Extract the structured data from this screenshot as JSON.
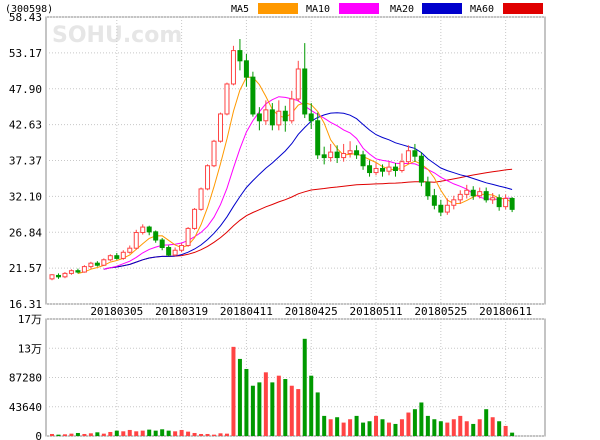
{
  "header": {
    "code": "(300598)",
    "watermark": "SOHU.com"
  },
  "legend": [
    {
      "name": "MA5",
      "color": "#ff9900"
    },
    {
      "name": "MA10",
      "color": "#ff00ff"
    },
    {
      "name": "MA20",
      "color": "#0000cc"
    },
    {
      "name": "MA60",
      "color": "#e00000"
    }
  ],
  "colors": {
    "up": "#ff4444",
    "down": "#009900",
    "grid": "#c8c8c8"
  },
  "chart_data": [
    {
      "type": "candlestick",
      "title": "",
      "y_ticks": [
        "58.43",
        "53.17",
        "47.90",
        "42.63",
        "37.37",
        "32.10",
        "26.84",
        "21.57",
        "16.31"
      ],
      "ylim": [
        16.31,
        58.43
      ],
      "x_ticks": [
        {
          "label": "20180305",
          "index": 10
        },
        {
          "label": "20180319",
          "index": 20
        },
        {
          "label": "20180411",
          "index": 30
        },
        {
          "label": "20180425",
          "index": 40
        },
        {
          "label": "20180511",
          "index": 50
        },
        {
          "label": "20180525",
          "index": 60
        },
        {
          "label": "20180611",
          "index": 70
        }
      ],
      "candles": [
        [
          20.0,
          20.6,
          19.8,
          20.7
        ],
        [
          20.5,
          20.3,
          20.0,
          20.8
        ],
        [
          20.3,
          20.8,
          20.1,
          21.0
        ],
        [
          20.8,
          21.2,
          20.6,
          21.4
        ],
        [
          21.2,
          21.0,
          20.8,
          21.5
        ],
        [
          21.0,
          21.8,
          20.9,
          22.0
        ],
        [
          21.8,
          22.3,
          21.5,
          22.5
        ],
        [
          22.3,
          22.0,
          21.8,
          22.6
        ],
        [
          22.0,
          22.8,
          21.9,
          23.0
        ],
        [
          22.8,
          23.4,
          22.6,
          23.6
        ],
        [
          23.4,
          23.0,
          22.8,
          23.8
        ],
        [
          23.0,
          23.9,
          22.8,
          24.2
        ],
        [
          23.9,
          24.5,
          23.7,
          24.9
        ],
        [
          24.5,
          26.8,
          24.3,
          27.2
        ],
        [
          26.8,
          27.6,
          26.5,
          28.0
        ],
        [
          27.6,
          26.9,
          26.4,
          27.8
        ],
        [
          26.9,
          25.7,
          25.3,
          27.1
        ],
        [
          25.7,
          24.6,
          24.2,
          26.0
        ],
        [
          24.6,
          23.5,
          23.3,
          24.9
        ],
        [
          23.5,
          24.2,
          23.3,
          24.6
        ],
        [
          24.2,
          24.9,
          23.9,
          25.2
        ],
        [
          24.9,
          27.4,
          24.7,
          27.6
        ],
        [
          27.4,
          30.2,
          27.2,
          30.4
        ],
        [
          30.2,
          33.2,
          30.0,
          33.4
        ],
        [
          33.2,
          36.6,
          33.0,
          36.8
        ],
        [
          36.6,
          40.2,
          36.4,
          40.4
        ],
        [
          40.2,
          44.2,
          40.0,
          44.4
        ],
        [
          44.2,
          48.6,
          44.0,
          48.8
        ],
        [
          48.6,
          53.5,
          48.4,
          54.2
        ],
        [
          53.5,
          52.0,
          50.6,
          55.2
        ],
        [
          52.0,
          49.6,
          48.2,
          53.0
        ],
        [
          49.6,
          44.2,
          43.8,
          50.4
        ],
        [
          44.2,
          43.2,
          41.8,
          45.2
        ],
        [
          43.2,
          44.8,
          42.6,
          46.2
        ],
        [
          44.8,
          42.6,
          41.8,
          45.8
        ],
        [
          42.6,
          44.6,
          41.8,
          46.2
        ],
        [
          44.6,
          43.2,
          41.6,
          45.4
        ],
        [
          43.2,
          46.4,
          42.8,
          47.6
        ],
        [
          46.4,
          50.8,
          46.0,
          52.0
        ],
        [
          50.8,
          44.2,
          43.6,
          54.6
        ],
        [
          44.2,
          43.2,
          42.0,
          45.8
        ],
        [
          43.2,
          38.2,
          37.6,
          44.4
        ],
        [
          38.2,
          37.8,
          36.8,
          39.4
        ],
        [
          37.8,
          38.6,
          37.2,
          39.8
        ],
        [
          38.6,
          37.8,
          37.0,
          39.6
        ],
        [
          37.8,
          38.4,
          37.2,
          39.8
        ],
        [
          38.4,
          38.8,
          37.8,
          40.2
        ],
        [
          38.8,
          38.2,
          37.6,
          39.6
        ],
        [
          38.2,
          36.6,
          36.0,
          38.8
        ],
        [
          36.6,
          35.6,
          35.0,
          37.4
        ],
        [
          35.6,
          36.2,
          35.2,
          37.0
        ],
        [
          36.2,
          35.8,
          35.0,
          36.8
        ],
        [
          35.8,
          36.4,
          35.2,
          37.2
        ],
        [
          36.4,
          35.9,
          35.0,
          37.0
        ],
        [
          35.9,
          37.2,
          35.6,
          38.4
        ],
        [
          37.2,
          38.8,
          36.8,
          39.6
        ],
        [
          38.8,
          38.0,
          37.2,
          39.8
        ],
        [
          38.0,
          34.2,
          33.6,
          38.6
        ],
        [
          34.2,
          32.2,
          31.6,
          35.0
        ],
        [
          32.2,
          30.8,
          30.2,
          33.2
        ],
        [
          30.8,
          29.8,
          29.2,
          31.6
        ],
        [
          29.8,
          30.8,
          29.4,
          31.8
        ],
        [
          30.8,
          31.6,
          30.2,
          32.2
        ],
        [
          31.6,
          32.4,
          31.0,
          33.0
        ],
        [
          32.4,
          33.0,
          31.8,
          33.8
        ],
        [
          33.0,
          32.2,
          31.6,
          33.6
        ],
        [
          32.2,
          32.8,
          31.8,
          33.4
        ],
        [
          32.8,
          31.6,
          31.2,
          33.4
        ],
        [
          31.6,
          31.9,
          31.0,
          32.6
        ],
        [
          31.9,
          30.6,
          30.0,
          32.4
        ],
        [
          30.6,
          31.8,
          30.2,
          32.4
        ],
        [
          31.8,
          30.2,
          29.8,
          32.0
        ]
      ],
      "volume": {
        "y_ticks": [
          "17万",
          "13万",
          "87280",
          "43640",
          "0"
        ],
        "ylim": [
          0,
          174560
        ],
        "values": [
          3000,
          2000,
          2500,
          3500,
          4500,
          3000,
          4000,
          5500,
          3500,
          6000,
          8000,
          7000,
          9000,
          7000,
          8000,
          9500,
          8000,
          10000,
          8000,
          7000,
          9000,
          6500,
          4500,
          3000,
          3000,
          2000,
          4000,
          3500,
          133000,
          115000,
          100000,
          75000,
          80000,
          95000,
          80000,
          90000,
          85000,
          75000,
          70000,
          145000,
          90000,
          65000,
          30000,
          25000,
          28000,
          20000,
          25000,
          30000,
          20000,
          22000,
          30000,
          25000,
          20000,
          18000,
          25000,
          35000,
          40000,
          50000,
          30000,
          25000,
          22000,
          20000,
          25000,
          30000,
          22000,
          18000,
          25000,
          40000,
          28000,
          22000,
          15000,
          5000
        ]
      }
    }
  ]
}
